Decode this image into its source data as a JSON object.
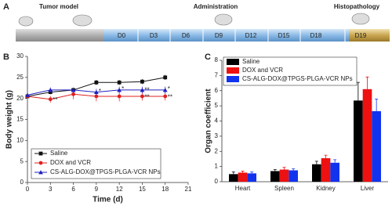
{
  "panel_a": {
    "label": "A",
    "stages": [
      "Tumor model",
      "Administration",
      "Histopathology"
    ],
    "days": [
      "D0",
      "D3",
      "D6",
      "D9",
      "D12",
      "D15",
      "D18",
      "D19"
    ]
  },
  "chart_data": [
    {
      "type": "line",
      "panel_label": "B",
      "x_label": "Time (d)",
      "y_label": "Body weight (g)",
      "x": [
        0,
        3,
        6,
        9,
        12,
        15,
        18
      ],
      "xlim": [
        0,
        21
      ],
      "xticks": [
        0,
        3,
        6,
        9,
        12,
        15,
        18,
        21
      ],
      "ylim": [
        0,
        30
      ],
      "yticks": [
        0,
        5,
        10,
        15,
        20,
        25,
        30
      ],
      "legend": "lower left",
      "series": [
        {
          "name": "Saline",
          "color": "#111111",
          "marker": "square",
          "values": [
            20.5,
            21.5,
            22,
            23.8,
            23.8,
            24,
            25
          ],
          "errors": [
            0.5,
            0.5,
            0.5,
            0.6,
            0.6,
            0.6,
            0.6
          ]
        },
        {
          "name": "DOX and VCR",
          "color": "#e02020",
          "marker": "circle",
          "values": [
            20.5,
            19.8,
            21,
            20.5,
            20.5,
            20.5,
            20.5
          ],
          "errors": [
            0.6,
            0.8,
            1.2,
            1.2,
            1.2,
            1.0,
            1.0
          ]
        },
        {
          "name": "CS-ALG-DOX@TPGS-PLGA-VCR NPs",
          "color": "#2020c0",
          "marker": "triangle",
          "values": [
            20.8,
            22,
            22,
            21.5,
            22,
            22,
            22
          ],
          "errors": [
            0.5,
            0.6,
            0.6,
            0.8,
            0.8,
            0.8,
            0.8
          ]
        }
      ],
      "annotations": [
        {
          "text": "**",
          "x": 3,
          "y": 19.8
        },
        {
          "text": "*",
          "x": 9,
          "y": 21.8
        },
        {
          "text": "*",
          "x": 12,
          "y": 22.4
        },
        {
          "text": "**",
          "x": 15,
          "y": 22.1
        },
        {
          "text": "**",
          "x": 15,
          "y": 20.4
        },
        {
          "text": "*",
          "x": 18,
          "y": 22.4
        },
        {
          "text": "**",
          "x": 18,
          "y": 20.4
        }
      ]
    },
    {
      "type": "bar",
      "panel_label": "C",
      "y_label": "Organ coefficient",
      "categories": [
        "Heart",
        "Spleen",
        "Kidney",
        "Liver"
      ],
      "ylim": [
        0,
        8
      ],
      "yticks": [
        0,
        1,
        2,
        3,
        4,
        5,
        6,
        7,
        8
      ],
      "legend": "upper left",
      "series": [
        {
          "name": "Saline",
          "color": "#000000",
          "values": [
            0.5,
            0.7,
            1.15,
            5.35
          ],
          "errors": [
            0.15,
            0.1,
            0.2,
            1.2
          ]
        },
        {
          "name": "DOX and VCR",
          "color": "#ee1111",
          "values": [
            0.6,
            0.8,
            1.55,
            6.1
          ],
          "errors": [
            0.1,
            0.15,
            0.2,
            0.8
          ]
        },
        {
          "name": "CS-ALG-DOX@TPGS-PLGA-VCR NPs",
          "color": "#1133ee",
          "values": [
            0.55,
            0.75,
            1.25,
            4.65
          ],
          "errors": [
            0.1,
            0.1,
            0.2,
            0.8
          ]
        }
      ]
    }
  ]
}
